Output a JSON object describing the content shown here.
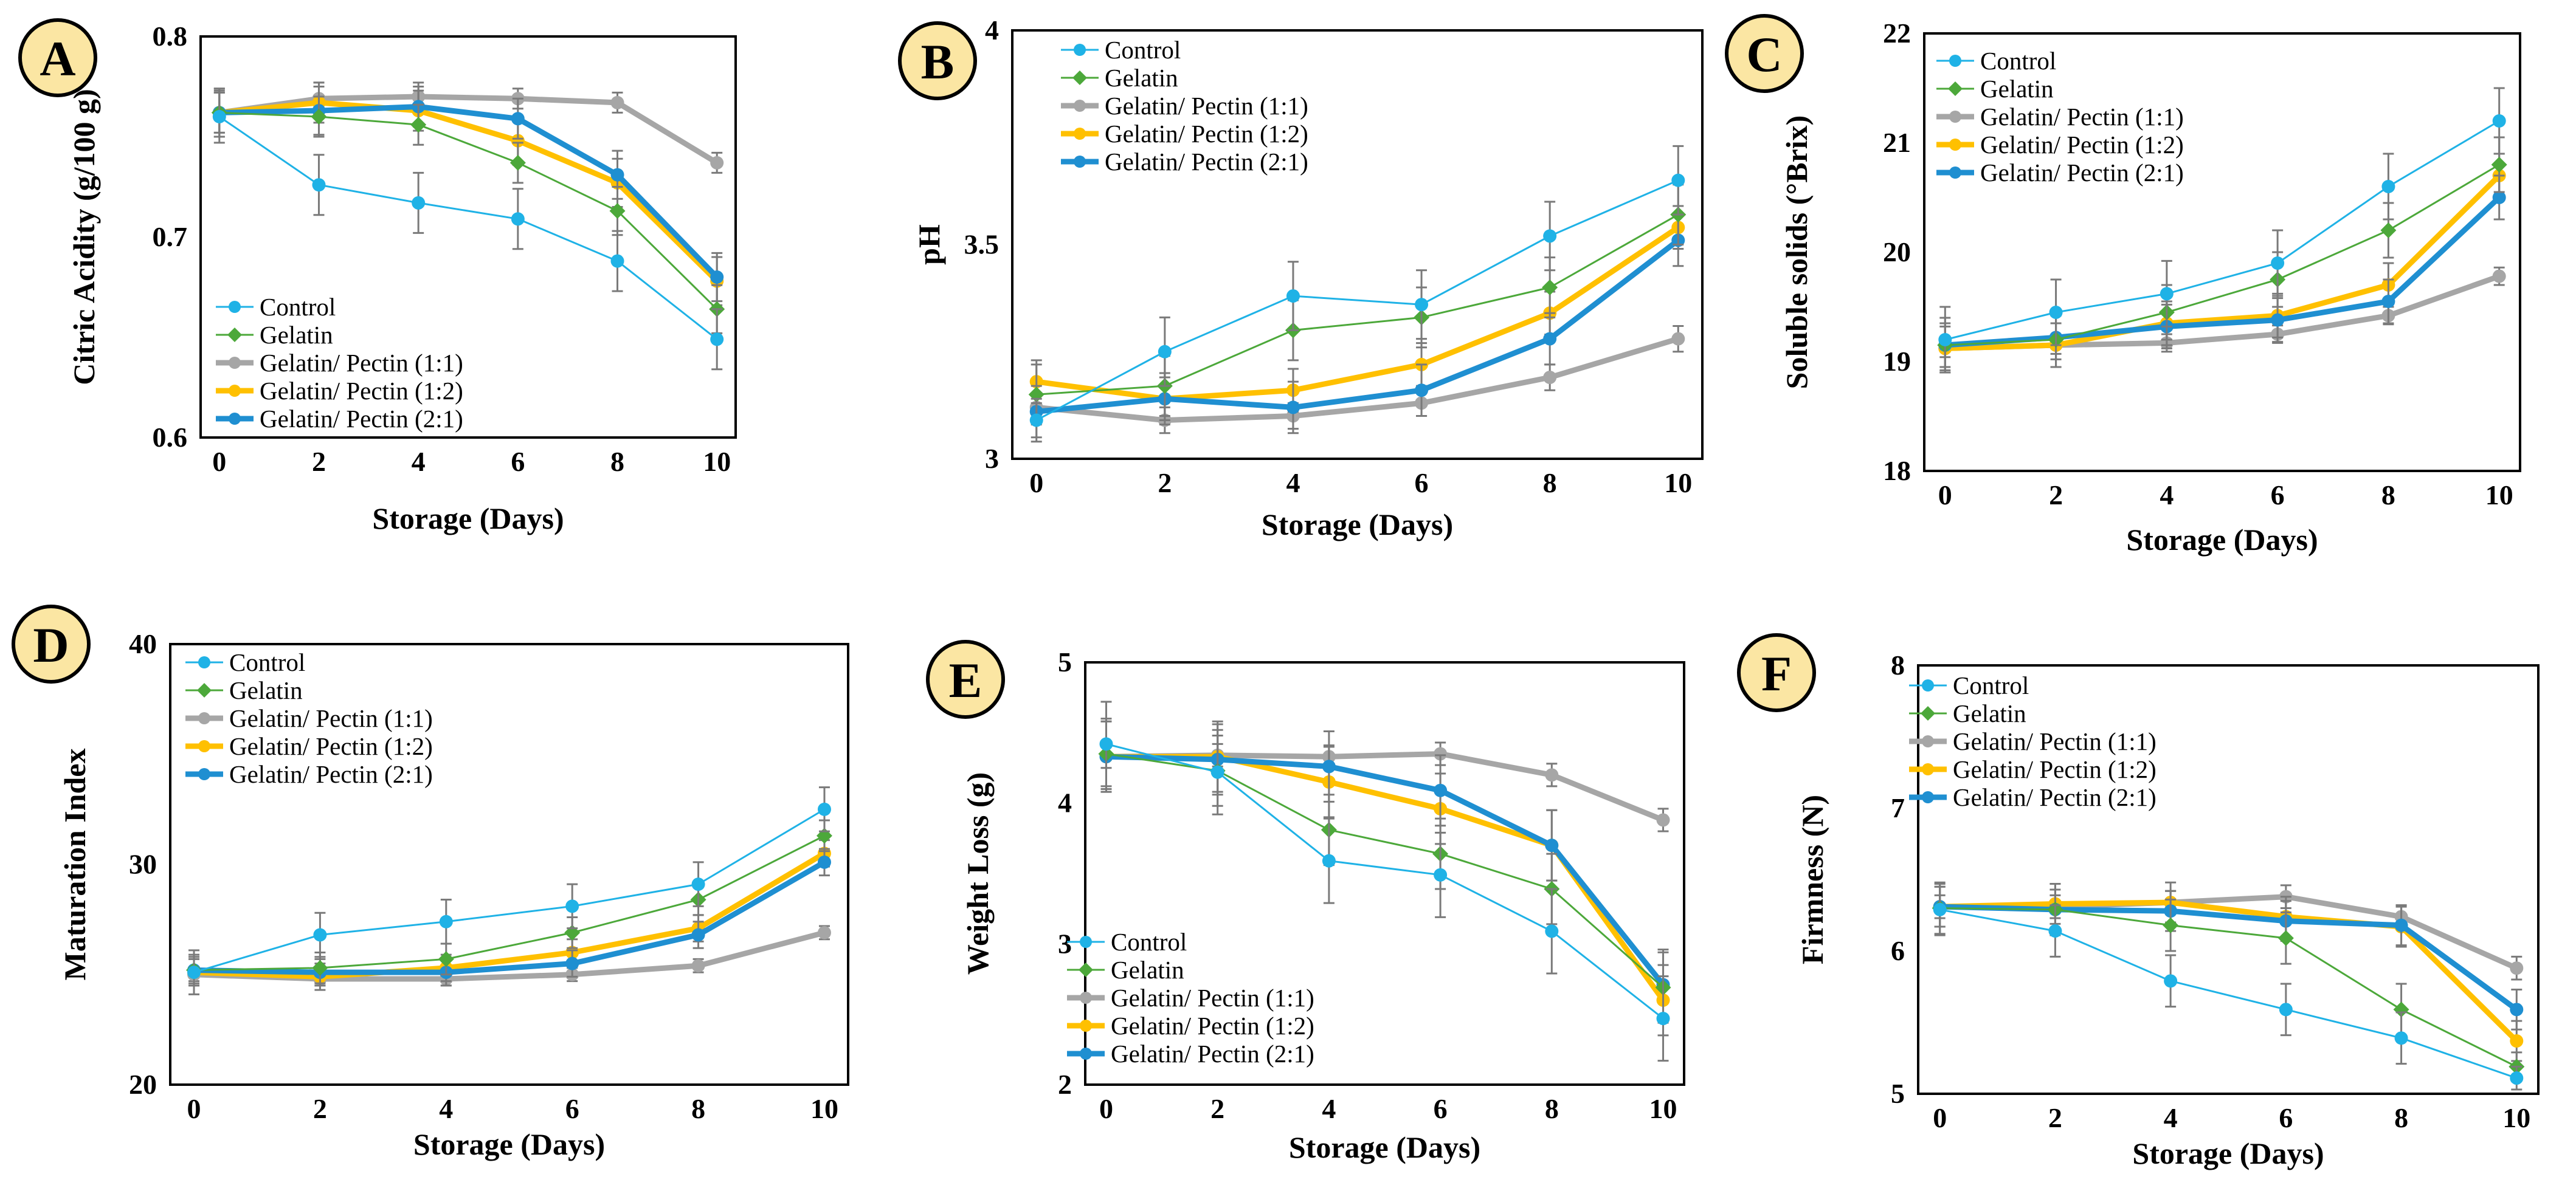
{
  "series_styles": [
    {
      "name": "Control",
      "color": "#1fb2e6",
      "line_width": 3,
      "marker": "circle"
    },
    {
      "name": "Gelatin",
      "color": "#4ca83a",
      "line_width": 3,
      "marker": "diamond"
    },
    {
      "name": "Gelatin/ Pectin (1:1)",
      "color": "#a6a6a6",
      "line_width": 9,
      "marker": "circle"
    },
    {
      "name": "Gelatin/ Pectin (1:2)",
      "color": "#ffc000",
      "line_width": 9,
      "marker": "circle"
    },
    {
      "name": "Gelatin/ Pectin (2:1)",
      "color": "#1f8fd1",
      "line_width": 9,
      "marker": "circle"
    }
  ],
  "chart_data": [
    {
      "panel": "A",
      "type": "line",
      "xlabel": "Storage (Days)",
      "ylabel": "Citric Acidity (g/100 g)",
      "x": [
        0,
        2,
        4,
        6,
        8,
        10
      ],
      "xticks": [
        "0",
        "2",
        "4",
        "6",
        "8",
        "10"
      ],
      "ylim": [
        0.6,
        0.8
      ],
      "yticks": [
        "0.6",
        "0.7",
        "0.8"
      ],
      "legend_position": "bottom-left",
      "series": [
        {
          "name": "Control",
          "values": [
            0.76,
            0.726,
            0.717,
            0.709,
            0.688,
            0.649
          ],
          "errors": [
            0.013,
            0.015,
            0.015,
            0.015,
            0.015,
            0.015
          ]
        },
        {
          "name": "Gelatin",
          "values": [
            0.762,
            0.76,
            0.756,
            0.737,
            0.713,
            0.664
          ],
          "errors": [
            0.01,
            0.01,
            0.01,
            0.01,
            0.012,
            0.012
          ]
        },
        {
          "name": "Gelatin/ Pectin (1:1)",
          "values": [
            0.762,
            0.769,
            0.77,
            0.769,
            0.767,
            0.737
          ],
          "errors": [
            0.01,
            0.008,
            0.007,
            0.005,
            0.005,
            0.005
          ]
        },
        {
          "name": "Gelatin/ Pectin (1:2)",
          "values": [
            0.762,
            0.767,
            0.763,
            0.748,
            0.727,
            0.678
          ],
          "errors": [
            0.012,
            0.01,
            0.01,
            0.012,
            0.012,
            0.012
          ]
        },
        {
          "name": "Gelatin/ Pectin (2:1)",
          "values": [
            0.762,
            0.763,
            0.765,
            0.759,
            0.731,
            0.68
          ],
          "errors": [
            0.012,
            0.012,
            0.01,
            0.01,
            0.012,
            0.012
          ]
        }
      ]
    },
    {
      "panel": "B",
      "type": "line",
      "xlabel": "Storage (Days)",
      "ylabel": "pH",
      "x": [
        0,
        2,
        4,
        6,
        8,
        10
      ],
      "xticks": [
        "0",
        "2",
        "4",
        "6",
        "8",
        "10"
      ],
      "ylim": [
        3,
        4
      ],
      "yticks": [
        "3",
        "3.5",
        "4"
      ],
      "legend_position": "top-left",
      "series": [
        {
          "name": "Control",
          "values": [
            3.09,
            3.25,
            3.38,
            3.36,
            3.52,
            3.65
          ],
          "errors": [
            0.05,
            0.08,
            0.08,
            0.08,
            0.08,
            0.08
          ]
        },
        {
          "name": "Gelatin",
          "values": [
            3.15,
            3.17,
            3.3,
            3.33,
            3.4,
            3.57
          ],
          "errors": [
            0.07,
            0.07,
            0.07,
            0.07,
            0.07,
            0.07
          ]
        },
        {
          "name": "Gelatin/ Pectin (1:1)",
          "values": [
            3.12,
            3.09,
            3.1,
            3.13,
            3.19,
            3.28
          ],
          "errors": [
            0.03,
            0.03,
            0.03,
            0.03,
            0.03,
            0.03
          ]
        },
        {
          "name": "Gelatin/ Pectin (1:2)",
          "values": [
            3.18,
            3.14,
            3.16,
            3.22,
            3.34,
            3.54
          ],
          "errors": [
            0.05,
            0.05,
            0.05,
            0.05,
            0.05,
            0.05
          ]
        },
        {
          "name": "Gelatin/ Pectin (2:1)",
          "values": [
            3.11,
            3.14,
            3.12,
            3.16,
            3.28,
            3.51
          ],
          "errors": [
            0.06,
            0.06,
            0.06,
            0.06,
            0.06,
            0.06
          ]
        }
      ]
    },
    {
      "panel": "C",
      "type": "line",
      "xlabel": "Storage (Days)",
      "ylabel": "Soluble solids (°Brix)",
      "x": [
        0,
        2,
        4,
        6,
        8,
        10
      ],
      "xticks": [
        "0",
        "2",
        "4",
        "6",
        "8",
        "10"
      ],
      "ylim": [
        18,
        22
      ],
      "yticks": [
        "18",
        "19",
        "20",
        "21",
        "22"
      ],
      "legend_position": "top-left",
      "series": [
        {
          "name": "Control",
          "values": [
            19.2,
            19.45,
            19.62,
            19.9,
            20.6,
            21.2
          ],
          "errors": [
            0.3,
            0.3,
            0.3,
            0.3,
            0.3,
            0.3
          ]
        },
        {
          "name": "Gelatin",
          "values": [
            19.15,
            19.2,
            19.45,
            19.75,
            20.2,
            20.8
          ],
          "errors": [
            0.25,
            0.25,
            0.25,
            0.25,
            0.25,
            0.25
          ]
        },
        {
          "name": "Gelatin/ Pectin (1:1)",
          "values": [
            19.12,
            19.15,
            19.17,
            19.25,
            19.42,
            19.78
          ],
          "errors": [
            0.08,
            0.08,
            0.08,
            0.08,
            0.08,
            0.08
          ]
        },
        {
          "name": "Gelatin/ Pectin (1:2)",
          "values": [
            19.12,
            19.15,
            19.35,
            19.42,
            19.7,
            20.7
          ],
          "errors": [
            0.2,
            0.2,
            0.2,
            0.2,
            0.2,
            0.2
          ]
        },
        {
          "name": "Gelatin/ Pectin (2:1)",
          "values": [
            19.15,
            19.22,
            19.32,
            19.38,
            19.55,
            20.5
          ],
          "errors": [
            0.2,
            0.2,
            0.2,
            0.2,
            0.2,
            0.2
          ]
        }
      ]
    },
    {
      "panel": "D",
      "type": "line",
      "xlabel": "Storage (Days)",
      "ylabel": "Maturation Index",
      "x": [
        0,
        2,
        4,
        6,
        8,
        10
      ],
      "xticks": [
        "0",
        "2",
        "4",
        "6",
        "8",
        "10"
      ],
      "ylim": [
        20,
        40
      ],
      "yticks": [
        "20",
        "30",
        "40"
      ],
      "legend_position": "top-left",
      "series": [
        {
          "name": "Control",
          "values": [
            25.1,
            26.8,
            27.4,
            28.1,
            29.1,
            32.5
          ],
          "errors": [
            1.0,
            1.0,
            1.0,
            1.0,
            1.0,
            1.0
          ]
        },
        {
          "name": "Gelatin",
          "values": [
            25.2,
            25.3,
            25.7,
            26.9,
            28.4,
            31.3
          ],
          "errors": [
            0.7,
            0.7,
            0.7,
            0.7,
            0.7,
            0.7
          ]
        },
        {
          "name": "Gelatin/ Pectin (1:1)",
          "values": [
            25.0,
            24.8,
            24.8,
            25.0,
            25.4,
            26.9
          ],
          "errors": [
            0.3,
            0.3,
            0.3,
            0.3,
            0.3,
            0.3
          ]
        },
        {
          "name": "Gelatin/ Pectin (1:2)",
          "values": [
            25.1,
            24.9,
            25.3,
            26.0,
            27.1,
            30.5
          ],
          "errors": [
            0.6,
            0.6,
            0.6,
            0.6,
            0.6,
            0.6
          ]
        },
        {
          "name": "Gelatin/ Pectin (2:1)",
          "values": [
            25.2,
            25.1,
            25.1,
            25.5,
            26.8,
            30.1
          ],
          "errors": [
            0.6,
            0.6,
            0.6,
            0.6,
            0.6,
            0.6
          ]
        }
      ]
    },
    {
      "panel": "E",
      "type": "line",
      "xlabel": "Storage (Days)",
      "ylabel": "Weight Loss (g)",
      "x": [
        0,
        2,
        4,
        6,
        8,
        10
      ],
      "xticks": [
        "0",
        "2",
        "4",
        "6",
        "8",
        "10"
      ],
      "ylim": [
        2,
        5
      ],
      "yticks": [
        "2",
        "3",
        "4",
        "5"
      ],
      "legend_position": "bottom-left",
      "series": [
        {
          "name": "Control",
          "values": [
            4.42,
            4.22,
            3.59,
            3.49,
            3.09,
            2.47
          ],
          "errors": [
            0.3,
            0.3,
            0.3,
            0.3,
            0.3,
            0.3
          ]
        },
        {
          "name": "Gelatin",
          "values": [
            4.35,
            4.23,
            3.81,
            3.64,
            3.39,
            2.69
          ],
          "errors": [
            0.25,
            0.25,
            0.25,
            0.25,
            0.25,
            0.25
          ]
        },
        {
          "name": "Gelatin/ Pectin (1:1)",
          "values": [
            4.33,
            4.34,
            4.33,
            4.35,
            4.2,
            3.88
          ],
          "errors": [
            0.08,
            0.08,
            0.08,
            0.08,
            0.08,
            0.08
          ]
        },
        {
          "name": "Gelatin/ Pectin (1:2)",
          "values": [
            4.33,
            4.33,
            4.15,
            3.96,
            3.7,
            2.6
          ],
          "errors": [
            0.25,
            0.25,
            0.25,
            0.25,
            0.25,
            0.25
          ]
        },
        {
          "name": "Gelatin/ Pectin (2:1)",
          "values": [
            4.33,
            4.31,
            4.26,
            4.09,
            3.7,
            2.71
          ],
          "errors": [
            0.25,
            0.25,
            0.25,
            0.25,
            0.25,
            0.25
          ]
        }
      ]
    },
    {
      "panel": "F",
      "type": "line",
      "xlabel": "Storage (Days)",
      "ylabel": "Firmness (N)",
      "x": [
        0,
        2,
        4,
        6,
        8,
        10
      ],
      "xticks": [
        "0",
        "2",
        "4",
        "6",
        "8",
        "10"
      ],
      "ylim": [
        5,
        8
      ],
      "yticks": [
        "5",
        "6",
        "7",
        "8"
      ],
      "legend_position": "top-left",
      "series": [
        {
          "name": "Control",
          "values": [
            6.29,
            6.14,
            5.79,
            5.59,
            5.39,
            5.11
          ],
          "errors": [
            0.18,
            0.18,
            0.18,
            0.18,
            0.18,
            0.08
          ]
        },
        {
          "name": "Gelatin",
          "values": [
            6.3,
            6.29,
            6.18,
            6.09,
            5.59,
            5.19
          ],
          "errors": [
            0.18,
            0.18,
            0.18,
            0.18,
            0.18,
            0.1
          ]
        },
        {
          "name": "Gelatin/ Pectin (1:1)",
          "values": [
            6.31,
            6.31,
            6.34,
            6.38,
            6.24,
            5.88
          ],
          "errors": [
            0.08,
            0.08,
            0.08,
            0.08,
            0.08,
            0.08
          ]
        },
        {
          "name": "Gelatin/ Pectin (1:2)",
          "values": [
            6.31,
            6.33,
            6.34,
            6.24,
            6.17,
            5.37
          ],
          "errors": [
            0.14,
            0.14,
            0.14,
            0.14,
            0.14,
            0.14
          ]
        },
        {
          "name": "Gelatin/ Pectin (2:1)",
          "values": [
            6.31,
            6.29,
            6.28,
            6.21,
            6.18,
            5.59
          ],
          "errors": [
            0.14,
            0.14,
            0.14,
            0.14,
            0.14,
            0.14
          ]
        }
      ]
    }
  ]
}
